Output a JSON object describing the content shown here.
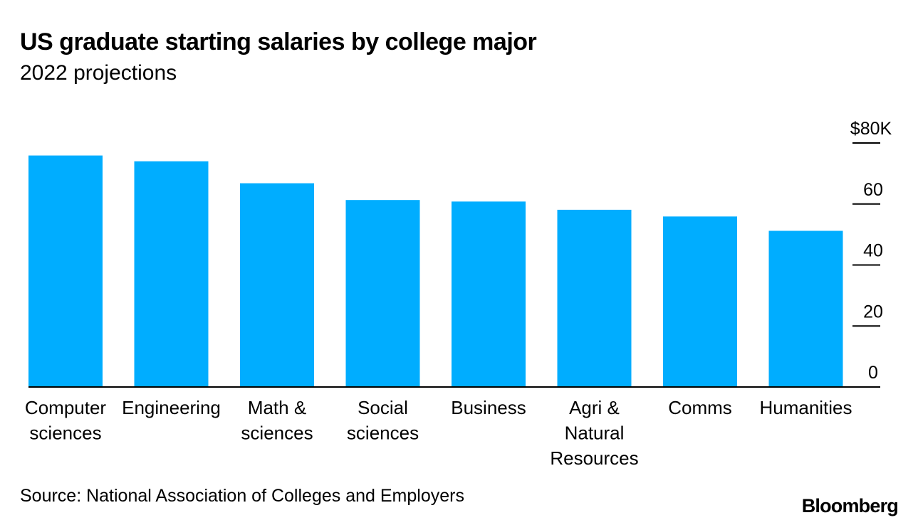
{
  "title": "US graduate starting salaries by college major",
  "subtitle": "2022 projections",
  "source": "Source: National Association of Colleges and Employers",
  "brand": "Bloomberg",
  "colors": {
    "bar": "#00adff",
    "axis": "#000000",
    "text": "#000000"
  },
  "chart_data": {
    "type": "bar",
    "categories": [
      "Computer sciences",
      "Engineering",
      "Math & sciences",
      "Social sciences",
      "Business",
      "Agri & Natural Resources",
      "Comms",
      "Humanities"
    ],
    "category_lines": [
      [
        "Computer",
        "sciences"
      ],
      [
        "Engineering"
      ],
      [
        "Math &",
        "sciences"
      ],
      [
        "Social",
        "sciences"
      ],
      [
        "Business"
      ],
      [
        "Agri &",
        "Natural",
        "Resources"
      ],
      [
        "Comms"
      ],
      [
        "Humanities"
      ]
    ],
    "values": [
      75.9,
      74.0,
      66.8,
      61.3,
      60.8,
      58.1,
      55.9,
      51.2
    ],
    "yticks": [
      0,
      20,
      40,
      60,
      80
    ],
    "ytick_labels": [
      "0",
      "20",
      "40",
      "60",
      "$80K"
    ],
    "ylim": [
      0,
      80
    ],
    "axis_position": "right",
    "grid": false,
    "legend": "none",
    "xlabel": "",
    "ylabel": ""
  }
}
